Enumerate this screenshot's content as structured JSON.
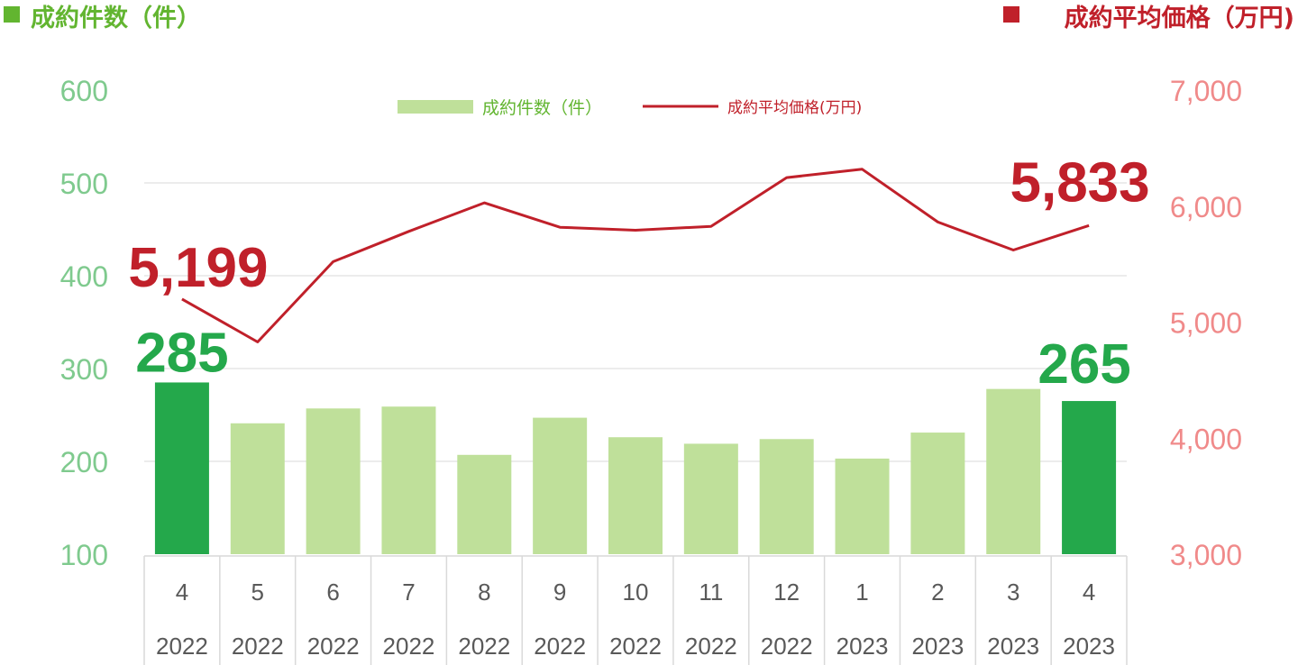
{
  "header": {
    "left_title": "成約件数（件）",
    "right_title": "成約平均価格（万円)"
  },
  "colors": {
    "bar": "#bfe09a",
    "bar_highlight": "#24a84b",
    "line": "#c0202a",
    "left_axis": "#7fca8e",
    "right_axis": "#f08a8a",
    "header_left": "#62b530",
    "header_right": "#c0202a",
    "grid": "#d9d9d9"
  },
  "chart_data": {
    "type": "bar",
    "categories": [
      "4",
      "5",
      "6",
      "7",
      "8",
      "9",
      "10",
      "11",
      "12",
      "1",
      "2",
      "3",
      "4"
    ],
    "years": [
      "2022",
      "2022",
      "2022",
      "2022",
      "2022",
      "2022",
      "2022",
      "2022",
      "2022",
      "2023",
      "2023",
      "2023",
      "2023"
    ],
    "left_ticks": [
      "100",
      "200",
      "300",
      "400",
      "500",
      "600"
    ],
    "right_ticks": [
      "3,000",
      "4,000",
      "5,000",
      "6,000",
      "7,000"
    ],
    "ylim_left": [
      100,
      600
    ],
    "ylim_right": [
      3000,
      7000
    ],
    "grid": true,
    "legend_position": "top-center",
    "series": [
      {
        "name": "成約件数（件）",
        "type": "bar",
        "axis": "left",
        "values": [
          285,
          241,
          257,
          259,
          207,
          247,
          226,
          219,
          224,
          203,
          231,
          278,
          265
        ],
        "highlight": [
          true,
          false,
          false,
          false,
          false,
          false,
          false,
          false,
          false,
          false,
          false,
          false,
          true
        ]
      },
      {
        "name": "成約平均価格(万円)",
        "type": "line",
        "axis": "right",
        "values": [
          5199,
          4829,
          5521,
          5782,
          6028,
          5818,
          5792,
          5826,
          6246,
          6318,
          5863,
          5621,
          5833
        ]
      }
    ],
    "annotations": {
      "bar_first": "285",
      "bar_last": "265",
      "line_first": "5,199",
      "line_last": "5,833"
    }
  }
}
